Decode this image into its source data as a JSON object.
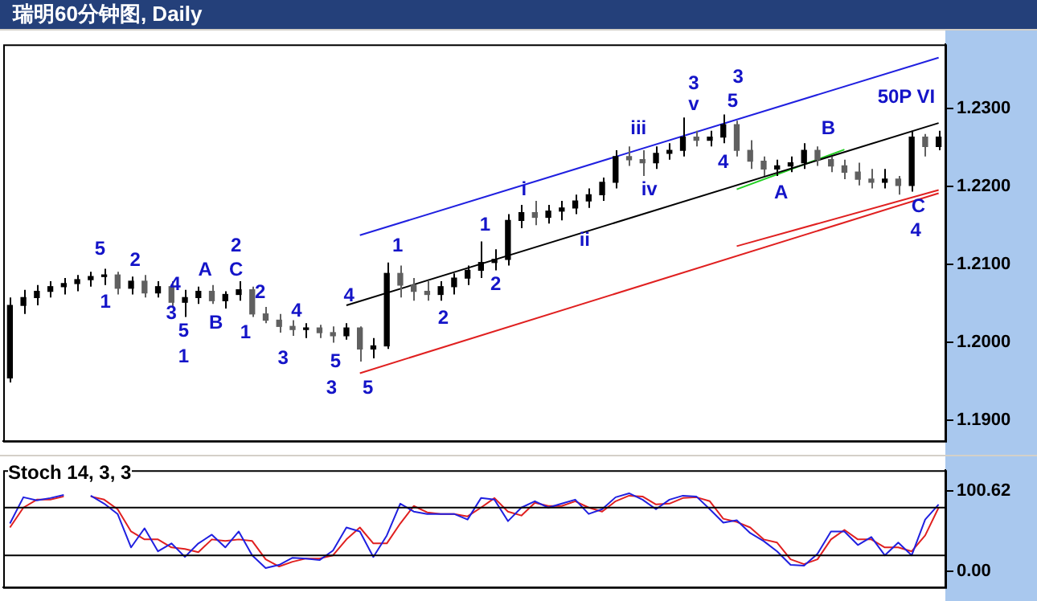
{
  "chart_data": [
    {
      "type": "candlestick",
      "title": "瑞明60分钟图, Daily",
      "categories": [
        null,
        null,
        null,
        null,
        null,
        null,
        null,
        null,
        null,
        null,
        null,
        null,
        null,
        null,
        null,
        null,
        null,
        null,
        null,
        null,
        null,
        null,
        null,
        null,
        null,
        null,
        null,
        null,
        null,
        null,
        null,
        null,
        null,
        null,
        null,
        null,
        null,
        null,
        null,
        null,
        null,
        null,
        null,
        null,
        null,
        null,
        null,
        null,
        null,
        null,
        null,
        null,
        null,
        null,
        null,
        null,
        null,
        null,
        null,
        null,
        null,
        null,
        null,
        null,
        null,
        null,
        null,
        null,
        null,
        null
      ],
      "ohlc": [
        [
          1.1954,
          1.2057,
          1.1948,
          1.2047
        ],
        [
          1.2047,
          1.2067,
          1.2036,
          1.2057
        ],
        [
          1.2057,
          1.2073,
          1.2047,
          1.2065
        ],
        [
          1.2065,
          1.2078,
          1.2057,
          1.2071
        ],
        [
          1.2071,
          1.2082,
          1.2061,
          1.2075
        ],
        [
          1.2075,
          1.2086,
          1.2065,
          1.208
        ],
        [
          1.208,
          1.209,
          1.2071,
          1.2084
        ],
        [
          1.2084,
          1.2094,
          1.2073,
          1.2086
        ],
        [
          1.2086,
          1.209,
          1.2061,
          1.2069
        ],
        [
          1.2069,
          1.2084,
          1.2061,
          1.2078
        ],
        [
          1.2078,
          1.2086,
          1.2057,
          1.2063
        ],
        [
          1.2063,
          1.2078,
          1.2057,
          1.2071
        ],
        [
          1.2071,
          1.2078,
          1.2045,
          1.2051
        ],
        [
          1.2051,
          1.2067,
          1.2032,
          1.2057
        ],
        [
          1.2057,
          1.2071,
          1.2049,
          1.2065
        ],
        [
          1.2065,
          1.2073,
          1.2049,
          1.2053
        ],
        [
          1.2053,
          1.2065,
          1.2043,
          1.2061
        ],
        [
          1.2061,
          1.2078,
          1.2053,
          1.2067
        ],
        [
          1.2067,
          1.2071,
          1.2032,
          1.2036
        ],
        [
          1.2036,
          1.2045,
          1.2024,
          1.2028
        ],
        [
          1.2028,
          1.2036,
          1.2012,
          1.202
        ],
        [
          1.202,
          1.2028,
          1.2008,
          1.2016
        ],
        [
          1.2016,
          1.2024,
          1.2005,
          1.2018
        ],
        [
          1.2018,
          1.2022,
          1.2005,
          1.2012
        ],
        [
          1.2012,
          1.202,
          1.1999,
          1.2008
        ],
        [
          1.2008,
          1.2024,
          1.2003,
          1.2018
        ],
        [
          1.2018,
          1.202,
          1.1975,
          1.1991
        ],
        [
          1.1991,
          1.2005,
          1.1979,
          1.1995
        ],
        [
          1.1995,
          1.2102,
          1.1991,
          1.2088
        ],
        [
          1.2088,
          1.2098,
          1.2057,
          1.2073
        ],
        [
          1.2073,
          1.2082,
          1.2053,
          1.2065
        ],
        [
          1.2065,
          1.2078,
          1.2053,
          1.2061
        ],
        [
          1.2061,
          1.2078,
          1.2053,
          1.2071
        ],
        [
          1.2071,
          1.2088,
          1.2061,
          1.2082
        ],
        [
          1.2082,
          1.2098,
          1.2073,
          1.2092
        ],
        [
          1.2092,
          1.2129,
          1.2082,
          1.2102
        ],
        [
          1.2102,
          1.2119,
          1.2092,
          1.2106
        ],
        [
          1.2106,
          1.2164,
          1.2098,
          1.2156
        ],
        [
          1.2156,
          1.2176,
          1.2146,
          1.2166
        ],
        [
          1.2166,
          1.2181,
          1.215,
          1.216
        ],
        [
          1.216,
          1.2176,
          1.2152,
          1.2168
        ],
        [
          1.2168,
          1.2181,
          1.2156,
          1.2172
        ],
        [
          1.2172,
          1.2189,
          1.2164,
          1.2181
        ],
        [
          1.2181,
          1.2197,
          1.2172,
          1.2189
        ],
        [
          1.2189,
          1.2211,
          1.2181,
          1.2205
        ],
        [
          1.2205,
          1.2246,
          1.2197,
          1.2238
        ],
        [
          1.2238,
          1.2251,
          1.2226,
          1.2234
        ],
        [
          1.2234,
          1.2246,
          1.2213,
          1.223
        ],
        [
          1.223,
          1.2251,
          1.2222,
          1.2242
        ],
        [
          1.2242,
          1.2255,
          1.2234,
          1.2246
        ],
        [
          1.2246,
          1.2288,
          1.2238,
          1.2263
        ],
        [
          1.2263,
          1.2271,
          1.2251,
          1.2259
        ],
        [
          1.2259,
          1.2271,
          1.2251,
          1.2263
        ],
        [
          1.2263,
          1.2292,
          1.2255,
          1.2279
        ],
        [
          1.2279,
          1.2284,
          1.2238,
          1.2246
        ],
        [
          1.2246,
          1.2259,
          1.2222,
          1.2232
        ],
        [
          1.2232,
          1.2238,
          1.2213,
          1.2222
        ],
        [
          1.2222,
          1.2234,
          1.2213,
          1.2226
        ],
        [
          1.2226,
          1.2238,
          1.2218,
          1.223
        ],
        [
          1.223,
          1.2255,
          1.2222,
          1.2246
        ],
        [
          1.2246,
          1.2251,
          1.2226,
          1.2234
        ],
        [
          1.2234,
          1.2238,
          1.2218,
          1.2226
        ],
        [
          1.2226,
          1.2234,
          1.2209,
          1.2218
        ],
        [
          1.2218,
          1.223,
          1.2201,
          1.2209
        ],
        [
          1.2209,
          1.2222,
          1.2197,
          1.2205
        ],
        [
          1.2205,
          1.2222,
          1.2197,
          1.2209
        ],
        [
          1.2209,
          1.2213,
          1.2189,
          1.2201
        ],
        [
          1.2201,
          1.2271,
          1.2193,
          1.2263
        ],
        [
          1.2263,
          1.2267,
          1.2238,
          1.2251
        ],
        [
          1.2251,
          1.2271,
          1.2246,
          1.2263
        ]
      ],
      "series": [
        {
          "type": "line",
          "color": "#2020e0",
          "values": [
            null,
            null,
            null,
            null,
            null,
            null,
            null,
            null,
            null,
            null,
            null,
            null,
            null,
            null,
            null,
            null,
            null,
            null,
            null,
            null,
            null,
            null,
            null,
            null,
            null,
            null,
            1.2137,
            null,
            null,
            null,
            null,
            null,
            null,
            null,
            null,
            null,
            null,
            null,
            null,
            null,
            null,
            null,
            null,
            null,
            null,
            null,
            null,
            null,
            null,
            null,
            null,
            null,
            null,
            null,
            null,
            null,
            null,
            null,
            null,
            null,
            null,
            null,
            null,
            null,
            null,
            null,
            null,
            null,
            null,
            1.2365
          ]
        },
        {
          "type": "line",
          "color": "#000000",
          "values": [
            null,
            null,
            null,
            null,
            null,
            null,
            null,
            null,
            null,
            null,
            null,
            null,
            null,
            null,
            null,
            null,
            null,
            null,
            null,
            null,
            null,
            null,
            null,
            null,
            null,
            1.2047,
            null,
            null,
            null,
            null,
            null,
            null,
            null,
            null,
            null,
            null,
            null,
            null,
            null,
            null,
            null,
            null,
            null,
            null,
            null,
            null,
            null,
            null,
            null,
            null,
            null,
            null,
            null,
            null,
            null,
            null,
            null,
            null,
            null,
            null,
            null,
            null,
            null,
            null,
            null,
            null,
            null,
            null,
            null,
            1.2281
          ]
        },
        {
          "type": "line",
          "color": "#e02020",
          "values": [
            null,
            null,
            null,
            null,
            null,
            null,
            null,
            null,
            null,
            null,
            null,
            null,
            null,
            null,
            null,
            null,
            null,
            null,
            null,
            null,
            null,
            null,
            null,
            null,
            null,
            null,
            1.196,
            null,
            null,
            null,
            null,
            null,
            null,
            null,
            null,
            null,
            null,
            null,
            null,
            null,
            null,
            null,
            null,
            null,
            null,
            null,
            null,
            null,
            null,
            null,
            null,
            null,
            null,
            null,
            null,
            null,
            null,
            null,
            null,
            null,
            null,
            null,
            null,
            null,
            null,
            null,
            null,
            null,
            null,
            1.2191
          ]
        },
        {
          "type": "line",
          "color": "#20d020",
          "values": [
            null,
            null,
            null,
            null,
            null,
            null,
            null,
            null,
            null,
            null,
            null,
            null,
            null,
            null,
            null,
            null,
            null,
            null,
            null,
            null,
            null,
            null,
            null,
            null,
            null,
            null,
            null,
            null,
            null,
            null,
            null,
            null,
            null,
            null,
            null,
            null,
            null,
            null,
            null,
            null,
            null,
            null,
            null,
            null,
            null,
            null,
            null,
            null,
            null,
            null,
            null,
            null,
            null,
            null,
            1.2196,
            null,
            null,
            null,
            null,
            null,
            null,
            null,
            1.2247,
            null,
            null,
            null,
            null,
            null,
            null,
            null
          ]
        },
        {
          "type": "line",
          "color": "#e02020",
          "values": [
            null,
            null,
            null,
            null,
            null,
            null,
            null,
            null,
            null,
            null,
            null,
            null,
            null,
            null,
            null,
            null,
            null,
            null,
            null,
            null,
            null,
            null,
            null,
            null,
            null,
            null,
            null,
            null,
            null,
            null,
            null,
            null,
            null,
            null,
            null,
            null,
            null,
            null,
            null,
            null,
            null,
            null,
            null,
            null,
            null,
            null,
            null,
            null,
            null,
            null,
            null,
            null,
            null,
            null,
            1.2123,
            null,
            null,
            null,
            null,
            null,
            null,
            null,
            null,
            null,
            null,
            null,
            null,
            null,
            null,
            1.2195
          ]
        }
      ],
      "ylim": [
        1.1873,
        1.2382
      ],
      "yticks": [
        {
          "value": 1.19,
          "label": "1.1900"
        },
        {
          "value": 1.2,
          "label": "1.2000"
        },
        {
          "value": 1.21,
          "label": "1.2100"
        },
        {
          "value": 1.22,
          "label": "1.2200"
        },
        {
          "value": 1.23,
          "label": "1.2300"
        }
      ],
      "tick_labels": "y",
      "grid": false,
      "legend": false,
      "marker": "none",
      "colors": [
        "#000000",
        "#000000",
        "#000000",
        "#000000",
        "#000000",
        "#000000",
        "#000000",
        "#000000",
        "#606060",
        "#000000",
        "#606060",
        "#000000",
        "#606060",
        "#000000",
        "#000000",
        "#606060",
        "#000000",
        "#000000",
        "#606060",
        "#606060",
        "#606060",
        "#606060",
        "#000000",
        "#606060",
        "#606060",
        "#000000",
        "#606060",
        "#000000",
        "#000000",
        "#606060",
        "#606060",
        "#606060",
        "#000000",
        "#000000",
        "#000000",
        "#000000",
        "#000000",
        "#000000",
        "#000000",
        "#606060",
        "#000000",
        "#000000",
        "#000000",
        "#000000",
        "#000000",
        "#000000",
        "#606060",
        "#606060",
        "#000000",
        "#000000",
        "#000000",
        "#606060",
        "#000000",
        "#000000",
        "#606060",
        "#606060",
        "#606060",
        "#000000",
        "#000000",
        "#000000",
        "#606060",
        "#606060",
        "#606060",
        "#606060",
        "#606060",
        "#000000",
        "#606060",
        "#000000",
        "#606060",
        "#000000"
      ],
      "annotations": [
        "5",
        "2",
        "1",
        "4",
        "3",
        "5",
        "1",
        "A",
        "B",
        "C",
        "2",
        "2",
        "1",
        "3",
        "4",
        "5",
        "3",
        "5",
        "4",
        "1",
        "2",
        "1",
        "2",
        "i",
        "ii",
        "iii",
        "iv",
        "3",
        "v",
        "3",
        "5",
        "4",
        "A",
        "B",
        "C",
        "4",
        "50P VI"
      ]
    },
    {
      "type": "line",
      "title": "Stoch 14, 3, 3",
      "categories": [
        null,
        null,
        null,
        null,
        null,
        null,
        null,
        null,
        null,
        null,
        null,
        null,
        null,
        null,
        null,
        null,
        null,
        null,
        null,
        null,
        null,
        null,
        null,
        null,
        null,
        null,
        null,
        null,
        null,
        null,
        null,
        null,
        null,
        null,
        null,
        null,
        null,
        null,
        null,
        null,
        null,
        null,
        null,
        null,
        null,
        null,
        null,
        null,
        null,
        null,
        null,
        null,
        null,
        null,
        null,
        null,
        null,
        null,
        null,
        null,
        null,
        null,
        null,
        null,
        null,
        null,
        null,
        null,
        null,
        null
      ],
      "series": [
        {
          "color": "#2020e0",
          "values": [
            60,
            93,
            89,
            92,
            96,
            null,
            95,
            85,
            72,
            30,
            54,
            25,
            35,
            18,
            35,
            46,
            30,
            50,
            20,
            4,
            8,
            17,
            16,
            14,
            26,
            55,
            50,
            18,
            45,
            85,
            75,
            72,
            72,
            72,
            65,
            92,
            90,
            63,
            80,
            88,
            80,
            85,
            90,
            72,
            78,
            93,
            98,
            90,
            78,
            90,
            95,
            94,
            78,
            61,
            64,
            48,
            38,
            25,
            8,
            7,
            22,
            50,
            50,
            33,
            43,
            20,
            36,
            20,
            65,
            84
          ]
        },
        {
          "color": "#e02020",
          "values": [
            55,
            80,
            90,
            90,
            94,
            null,
            94,
            90,
            78,
            50,
            40,
            40,
            30,
            28,
            24,
            40,
            38,
            40,
            38,
            15,
            6,
            12,
            16,
            16,
            20,
            40,
            55,
            35,
            35,
            60,
            82,
            74,
            72,
            72,
            69,
            80,
            92,
            75,
            70,
            86,
            82,
            82,
            88,
            80,
            75,
            88,
            95,
            94,
            84,
            85,
            92,
            93,
            88,
            66,
            62,
            55,
            40,
            36,
            15,
            9,
            15,
            40,
            52,
            40,
            40,
            30,
            30,
            25,
            45,
            80
          ]
        }
      ],
      "ylim": [
        -20,
        127
      ],
      "yticks": [
        {
          "value": 0,
          "label": "0.00"
        },
        {
          "value": 100.62,
          "label": "100.62"
        }
      ],
      "ref_lines": [
        {
          "axis": "y",
          "value": 80,
          "color": "#000000"
        },
        {
          "axis": "y",
          "value": 20,
          "color": "#000000"
        }
      ],
      "tick_labels": "y",
      "grid": false,
      "legend": false,
      "marker": "none"
    }
  ]
}
